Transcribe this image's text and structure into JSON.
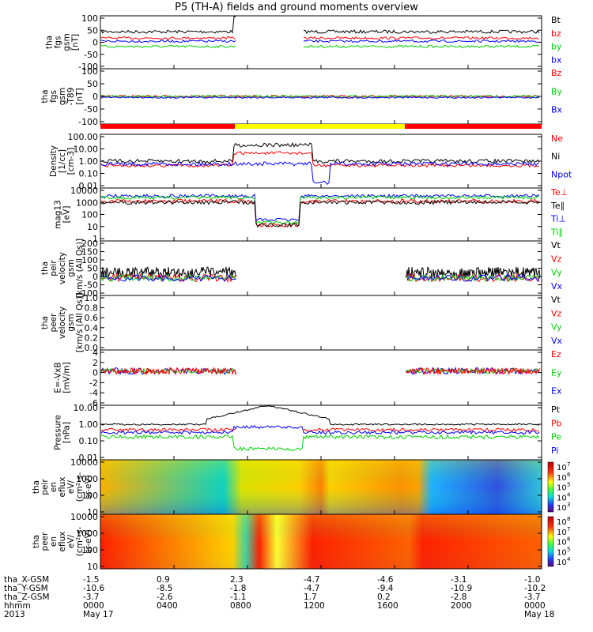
{
  "title": "P5 (TH-A) fields and ground moments overview",
  "colors": {
    "black": "#000000",
    "red": "#ff0000",
    "green": "#00d000",
    "blue": "#0000ff"
  },
  "chart_data": [
    {
      "type": "line",
      "ylabel": [
        "tha",
        "fgs",
        "gsm",
        "[nT]"
      ],
      "yticks": [
        100,
        50,
        0,
        -50,
        -100
      ],
      "ylim": [
        -100,
        100
      ],
      "legend": [
        "Bt",
        "bz",
        "by",
        "bx"
      ],
      "legend_colors": [
        "#000000",
        "#ff0000",
        "#00d000",
        "#0000ff"
      ]
    },
    {
      "type": "line",
      "ylabel": [
        "tha",
        "fgs",
        "gsm",
        "-T89",
        "[nT]"
      ],
      "yticks": [
        100,
        50,
        0,
        -50,
        -100
      ],
      "ylim": [
        -125,
        100
      ],
      "legend": [
        "Bz",
        "By",
        "Bx"
      ],
      "legend_colors": [
        "#ff0000",
        "#00d000",
        "#0000ff"
      ]
    },
    {
      "type": "bar",
      "description_colors": [
        "#ff0000",
        "#ffff00",
        "#ff0000"
      ]
    },
    {
      "type": "line",
      "ylabel": [
        "Density",
        "[1/cc]",
        "[cm-3]"
      ],
      "yticks": [
        "100.00",
        "10.00",
        "1.00",
        "0.10",
        "0.01"
      ],
      "log": true,
      "legend": [
        "Ne",
        "Ni",
        "Npot"
      ],
      "legend_colors": [
        "#ff0000",
        "#000000",
        "#0000ff"
      ]
    },
    {
      "type": "line",
      "ylabel": [
        "mag13",
        "[eV]"
      ],
      "yticks": [
        "10000",
        "1000",
        "100",
        "10",
        "1"
      ],
      "log": true,
      "legend": [
        "Te⊥",
        "Te∥",
        "Ti⊥",
        "Ti∥"
      ],
      "legend_colors": [
        "#ff0000",
        "#000000",
        "#0000ff",
        "#00d000"
      ]
    },
    {
      "type": "line",
      "ylabel": [
        "tha",
        "peir",
        "velocity",
        "gsm",
        "[km/s (All Qs)]"
      ],
      "yticks": [
        200,
        150,
        100,
        50,
        0,
        -50,
        -100
      ],
      "legend": [
        "Vt",
        "Vz",
        "Vy",
        "Vx"
      ],
      "legend_colors": [
        "#000000",
        "#ff0000",
        "#00d000",
        "#0000ff"
      ]
    },
    {
      "type": "line",
      "ylabel": [
        "tha",
        "peer",
        "velocity",
        "gsm",
        "[km/s (All Qs)]"
      ],
      "yticks": [
        "1.0",
        "0.8",
        "0.6",
        "0.4",
        "0.2",
        "0.0"
      ],
      "legend": [
        "Vt",
        "Vz",
        "Vy",
        "Vx"
      ],
      "legend_colors": [
        "#000000",
        "#ff0000",
        "#00d000",
        "#0000ff"
      ]
    },
    {
      "type": "line",
      "ylabel": [
        "E=-VxB",
        "[mV/m]"
      ],
      "yticks": [
        4,
        2,
        0,
        -2,
        -4,
        -6
      ],
      "legend": [
        "Ez",
        "Ey",
        "Ex"
      ],
      "legend_colors": [
        "#ff0000",
        "#00d000",
        "#0000ff"
      ]
    },
    {
      "type": "line",
      "ylabel": [
        "Pressure",
        "[nPa]"
      ],
      "yticks": [
        "10.00",
        "1.00",
        "0.10",
        "0.01"
      ],
      "log": true,
      "legend": [
        "Pt",
        "Pb",
        "Pe",
        "Pi"
      ],
      "legend_colors": [
        "#000000",
        "#ff0000",
        "#00d000",
        "#0000ff"
      ]
    },
    {
      "type": "heatmap",
      "ylabel": [
        "tha",
        "peir",
        "en",
        "eflux",
        "eV/",
        "(cm²-s-",
        "sr-eV)"
      ],
      "yticks": [
        "10000",
        "1000",
        "100",
        "10"
      ],
      "colorbar": [
        "10",
        "10",
        "10",
        "10",
        "10"
      ],
      "colorbar_exp": [
        "7",
        "6",
        "5",
        "4",
        "3"
      ]
    },
    {
      "type": "heatmap",
      "ylabel": [
        "tha",
        "peer",
        "en",
        "eflux",
        "eV/",
        "(cm²-s-",
        "sr-eV)"
      ],
      "yticks": [
        "10000",
        "1000",
        "100",
        "10"
      ],
      "colorbar": [
        "10",
        "10",
        "10",
        "10",
        "10"
      ],
      "colorbar_exp": [
        "8",
        "7",
        "6",
        "5",
        "4"
      ]
    }
  ],
  "x_axis": {
    "row_labels": [
      "tha_X-GSM",
      "tha_Y-GSM",
      "tha_Z-GSM",
      "hhmm",
      "2013"
    ],
    "columns": [
      [
        "-1.5",
        "-10.6",
        "-3.7",
        "0000",
        "May 17"
      ],
      [
        "0.9",
        "-8.5",
        "-2.6",
        "0400",
        ""
      ],
      [
        "2.3",
        "-1.8",
        "-1.1",
        "0800",
        ""
      ],
      [
        "-4.7",
        "-4.7",
        "1.7",
        "1200",
        ""
      ],
      [
        "-4.6",
        "-9.4",
        "0.2",
        "1600",
        ""
      ],
      [
        "-3.1",
        "-10.9",
        "-2.8",
        "2000",
        ""
      ],
      [
        "-1.0",
        "-10.2",
        "-3.7",
        "0000",
        "May 18"
      ]
    ]
  }
}
